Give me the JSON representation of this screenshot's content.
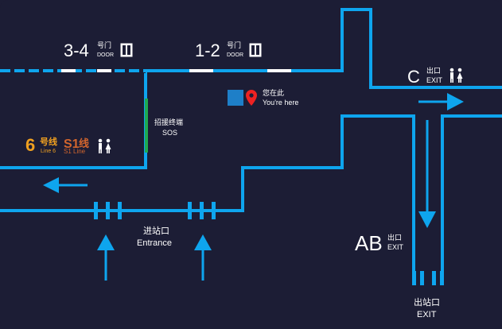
{
  "colors": {
    "background": "#1c1d35",
    "path": "#0ea5ee",
    "line6": "#f0a020",
    "lineS1": "#d2652d",
    "sos": "#1faa50",
    "marker": "#ee2222",
    "text": "#ffffff"
  },
  "doors": {
    "left": {
      "number": "3-4",
      "cn": "号门",
      "en": "DOOR"
    },
    "right": {
      "number": "1-2",
      "cn": "号门",
      "en": "DOOR"
    },
    "icon": "door-icon"
  },
  "you_are_here": {
    "cn": "您在此",
    "en": "You're here",
    "icon": "location-pin-icon"
  },
  "sos": {
    "cn": "招援终端",
    "en": "SOS"
  },
  "lines": {
    "line6": {
      "num": "6",
      "cn": "号线",
      "en": "Line 6"
    },
    "lineS1": {
      "num": "S1",
      "cn": "线",
      "en": "S1 Line"
    }
  },
  "exit_c": {
    "letter": "C",
    "cn": "出口",
    "en": "EXIT",
    "icon": "restroom-icon"
  },
  "exit_ab": {
    "letter": "AB",
    "cn": "出口",
    "en": "EXIT"
  },
  "entrance": {
    "cn": "进站口",
    "en": "Entrance"
  },
  "exit_gate": {
    "cn": "出站口",
    "en": "EXIT"
  }
}
